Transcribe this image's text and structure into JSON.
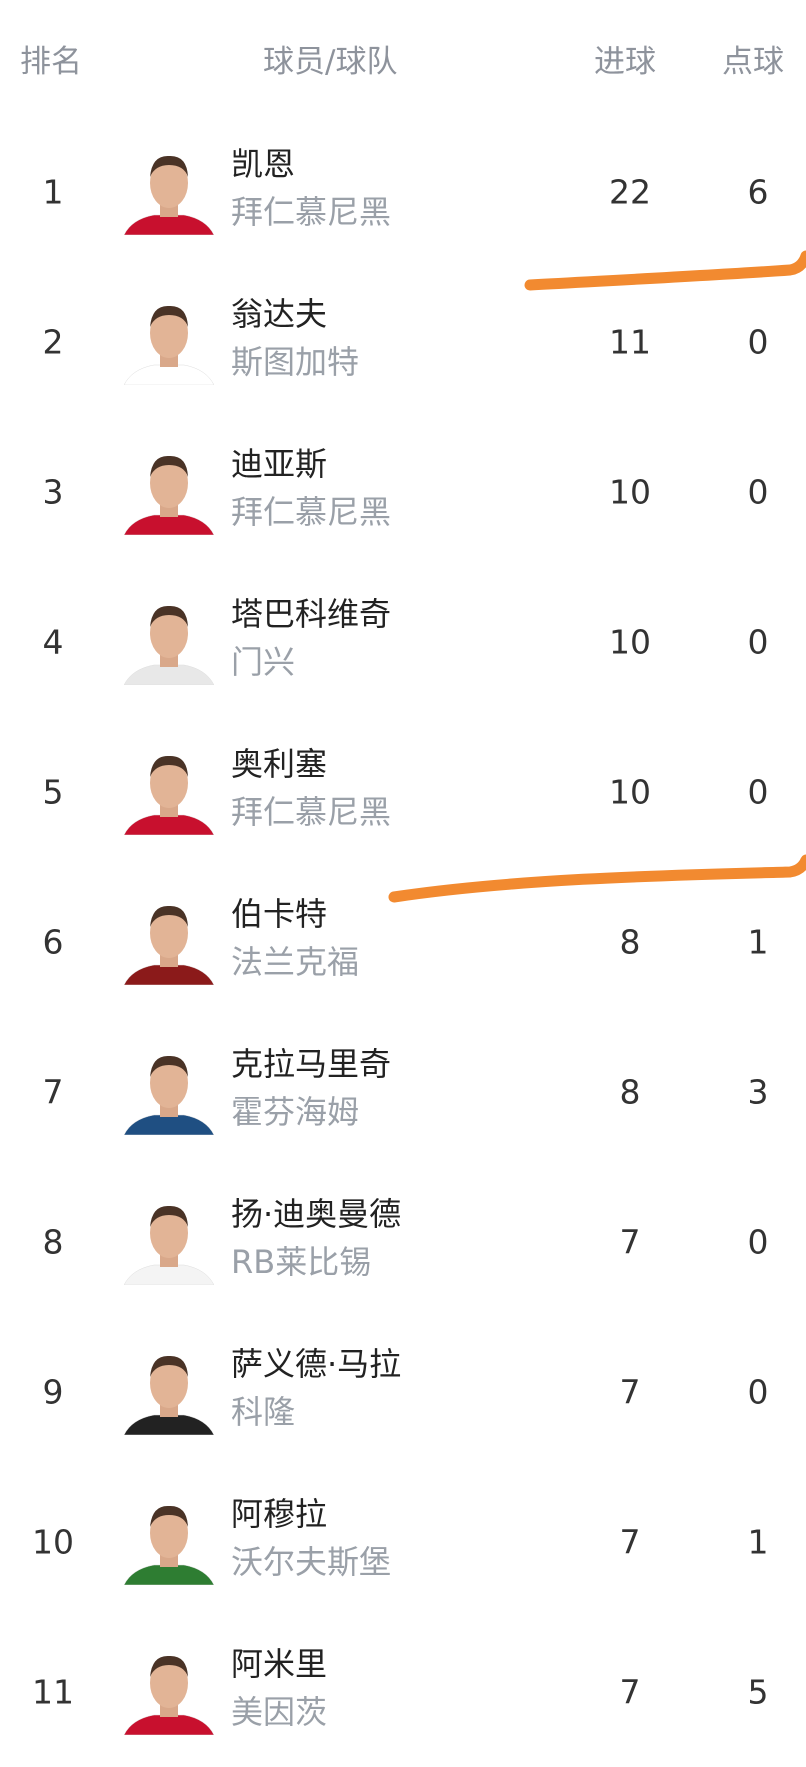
{
  "header": {
    "rank": "排名",
    "player_team": "球员/球队",
    "goals": "进球",
    "penalties": "点球"
  },
  "annotation_color": "#f28a30",
  "rows": [
    {
      "rank": "1",
      "name": "凯恩",
      "team": "拜仁慕尼黑",
      "goals": "22",
      "penalties": "6",
      "kit": "#c8102e"
    },
    {
      "rank": "2",
      "name": "翁达夫",
      "team": "斯图加特",
      "goals": "11",
      "penalties": "0",
      "kit": "#ffffff"
    },
    {
      "rank": "3",
      "name": "迪亚斯",
      "team": "拜仁慕尼黑",
      "goals": "10",
      "penalties": "0",
      "kit": "#c8102e"
    },
    {
      "rank": "4",
      "name": "塔巴科维奇",
      "team": "门兴",
      "goals": "10",
      "penalties": "0",
      "kit": "#e8e8e8"
    },
    {
      "rank": "5",
      "name": "奥利塞",
      "team": "拜仁慕尼黑",
      "goals": "10",
      "penalties": "0",
      "kit": "#c8102e"
    },
    {
      "rank": "6",
      "name": "伯卡特",
      "team": "法兰克福",
      "goals": "8",
      "penalties": "1",
      "kit": "#8b1a1a"
    },
    {
      "rank": "7",
      "name": "克拉马里奇",
      "team": "霍芬海姆",
      "goals": "8",
      "penalties": "3",
      "kit": "#1f4f82"
    },
    {
      "rank": "8",
      "name": "扬·迪奥曼德",
      "team": "RB莱比锡",
      "goals": "7",
      "penalties": "0",
      "kit": "#f4f4f4"
    },
    {
      "rank": "9",
      "name": "萨义德·马拉",
      "team": "科隆",
      "goals": "7",
      "penalties": "0",
      "kit": "#222222"
    },
    {
      "rank": "10",
      "name": "阿穆拉",
      "team": "沃尔夫斯堡",
      "goals": "7",
      "penalties": "1",
      "kit": "#2e7d32"
    },
    {
      "rank": "11",
      "name": "阿米里",
      "team": "美因茨",
      "goals": "7",
      "penalties": "5",
      "kit": "#c8102e"
    }
  ]
}
